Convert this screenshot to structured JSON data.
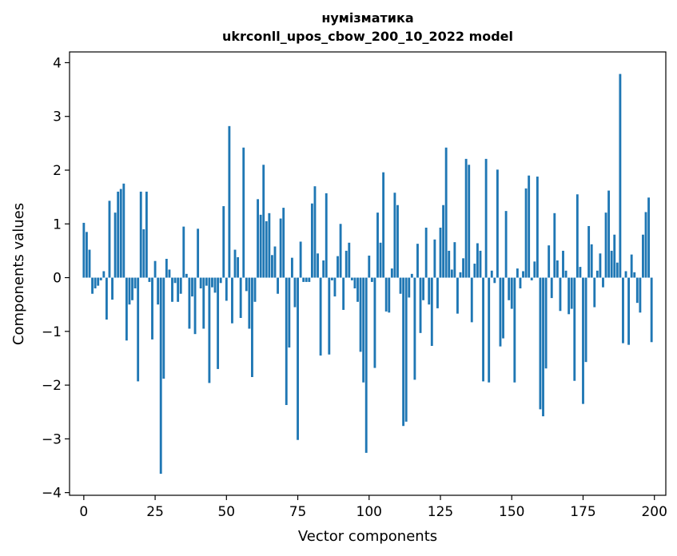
{
  "chart_data": {
    "type": "bar",
    "title_line1": "нумізматика",
    "title_line2": "ukrconll_upos_cbow_200_10_2022 model",
    "xlabel": "Vector components",
    "ylabel": "Components values",
    "xlim": [
      -5,
      204
    ],
    "ylim": [
      -4.05,
      4.2
    ],
    "xticks": [
      0,
      25,
      50,
      75,
      100,
      125,
      150,
      175,
      200
    ],
    "yticks": [
      -4,
      -3,
      -2,
      -1,
      0,
      1,
      2,
      3,
      4
    ],
    "bar_color": "#1f77b4",
    "values": [
      1.02,
      0.85,
      0.52,
      -0.3,
      -0.2,
      -0.15,
      -0.05,
      0.12,
      -0.78,
      1.43,
      -0.41,
      1.21,
      1.6,
      1.65,
      1.75,
      -1.17,
      -0.5,
      -0.42,
      -0.2,
      -1.93,
      1.6,
      0.9,
      1.6,
      -0.08,
      -1.15,
      0.31,
      -0.5,
      -3.65,
      -1.88,
      0.35,
      0.15,
      -0.45,
      -0.1,
      -0.45,
      -0.3,
      0.95,
      0.07,
      -0.95,
      -0.35,
      -1.05,
      0.91,
      -0.2,
      -0.95,
      -0.15,
      -1.96,
      -0.18,
      -0.28,
      -1.7,
      -0.1,
      1.33,
      -0.43,
      2.82,
      -0.85,
      0.52,
      0.38,
      -0.75,
      2.42,
      -0.25,
      -0.95,
      -1.85,
      -0.45,
      1.46,
      1.17,
      2.1,
      1.05,
      1.2,
      0.42,
      0.58,
      -0.3,
      1.1,
      1.3,
      -2.37,
      -1.3,
      0.37,
      -0.55,
      -3.02,
      0.67,
      -0.08,
      -0.08,
      -0.08,
      1.38,
      1.7,
      0.45,
      -1.45,
      0.32,
      1.57,
      -1.43,
      -0.05,
      -0.35,
      0.4,
      1.0,
      -0.6,
      0.5,
      0.65,
      -0.05,
      -0.2,
      -0.45,
      -1.38,
      -1.95,
      -3.26,
      0.41,
      -0.08,
      -1.68,
      1.21,
      0.65,
      1.96,
      -0.63,
      -0.65,
      0.17,
      1.58,
      1.35,
      -0.3,
      -2.76,
      -2.68,
      -0.37,
      0.07,
      -1.9,
      0.63,
      -1.03,
      -0.42,
      0.93,
      -0.5,
      -1.27,
      0.71,
      -0.57,
      0.93,
      1.35,
      2.42,
      0.5,
      0.15,
      0.66,
      -0.67,
      0.1,
      0.36,
      2.21,
      2.1,
      -0.83,
      0.26,
      0.64,
      0.5,
      -1.93,
      2.21,
      -1.95,
      0.13,
      -0.1,
      2.01,
      -1.28,
      -1.13,
      1.24,
      -0.42,
      -0.58,
      -1.95,
      0.17,
      -0.2,
      0.12,
      1.66,
      1.9,
      -0.05,
      0.3,
      1.88,
      -2.45,
      -2.58,
      -1.69,
      0.6,
      -0.38,
      1.2,
      0.32,
      -0.62,
      0.5,
      0.13,
      -0.68,
      -0.58,
      -1.92,
      1.55,
      0.2,
      -2.35,
      -1.57,
      0.96,
      0.62,
      -0.55,
      0.13,
      0.45,
      -0.18,
      1.21,
      1.62,
      0.5,
      0.8,
      0.28,
      3.79,
      -1.22,
      0.12,
      -1.25,
      0.43,
      0.1,
      -0.47,
      -0.65,
      0.8,
      1.22,
      1.49,
      -1.2
    ]
  }
}
